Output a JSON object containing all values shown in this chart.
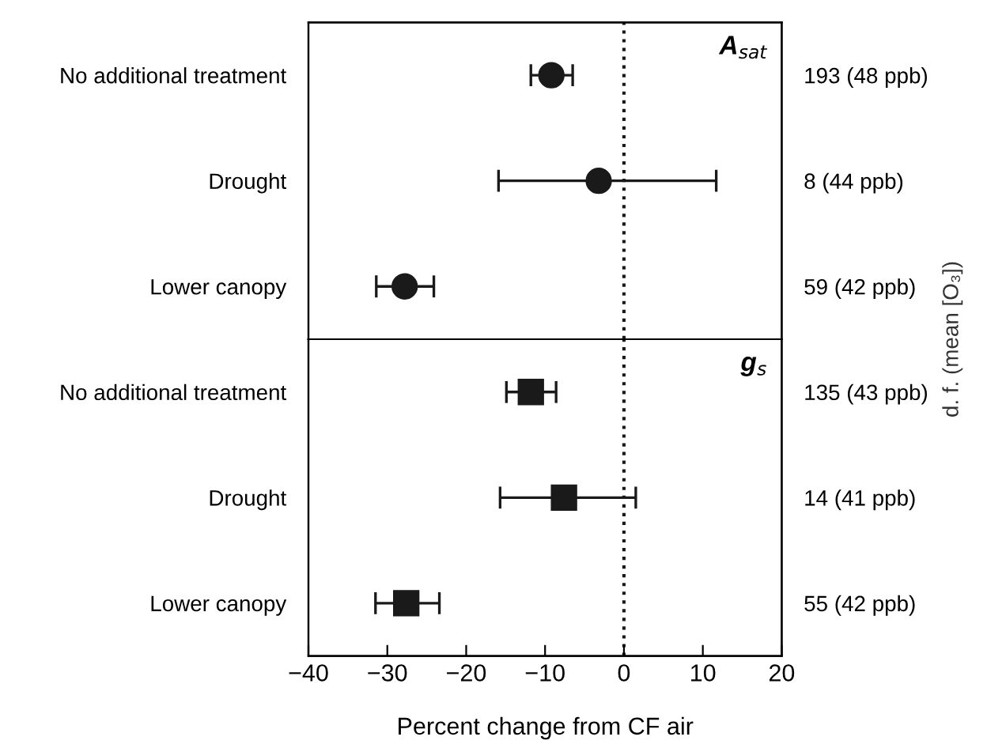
{
  "chart_data": [
    {
      "type": "scatter",
      "orientation": "horizontal",
      "categories": [
        "No additional treatment",
        "Drought",
        "Lower canopy"
      ],
      "y2_categories": [
        "193 (48 ppb)",
        "8 (44 ppb)",
        "59 (42 ppb)"
      ],
      "values": [
        -9.2,
        -3.2,
        -27.8
      ],
      "errors": [
        [
          -11.8,
          -6.5
        ],
        [
          -15.9,
          11.7
        ],
        [
          -31.4,
          -24.1
        ]
      ],
      "color": "#1a1a1a",
      "marker": "circle",
      "xlim": [
        -40,
        20
      ],
      "tick_labels": "y",
      "annotations": [
        "A$_{sat}$"
      ],
      "ref_lines": [
        {
          "axis": "x",
          "value": 0,
          "line_style": "dotted",
          "color": "#1a1a1a"
        }
      ],
      "grid": false,
      "legend": false
    },
    {
      "type": "scatter",
      "orientation": "horizontal",
      "categories": [
        "No additional treatment",
        "Drought",
        "Lower canopy"
      ],
      "y2_categories": [
        "135 (43 ppb)",
        "14 (41 ppb)",
        "55 (42 ppb)"
      ],
      "values": [
        -11.8,
        -7.6,
        -27.6
      ],
      "errors": [
        [
          -14.9,
          -8.6
        ],
        [
          -15.7,
          1.5
        ],
        [
          -31.5,
          -23.4
        ]
      ],
      "color": "#1a1a1a",
      "marker": "square",
      "xlim": [
        -40,
        20
      ],
      "xticks": [
        {
          "value": -40,
          "label": "−40"
        },
        {
          "value": -30,
          "label": "−30"
        },
        {
          "value": -20,
          "label": "−20"
        },
        {
          "value": -10,
          "label": "−10"
        },
        0,
        10,
        20
      ],
      "xlabel": "Percent change from CF air",
      "y2label": "d. f. (mean [O₃])",
      "annotations": [
        "g$_{s}$"
      ],
      "ref_lines": [
        {
          "axis": "x",
          "value": 0,
          "line_style": "dotted",
          "color": "#1a1a1a"
        }
      ],
      "grid": false,
      "legend": false
    }
  ]
}
